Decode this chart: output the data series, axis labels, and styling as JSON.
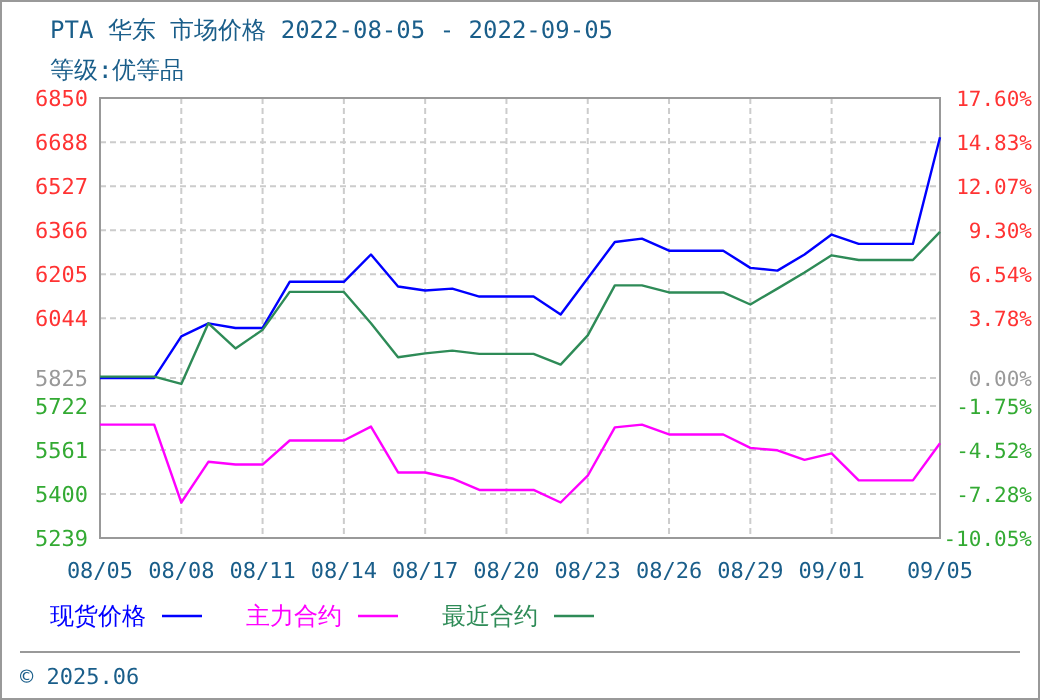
{
  "chart_data": {
    "type": "line",
    "title": "PTA 华东 市场价格 2022-08-05 - 2022-09-05",
    "subtitle": "等级:优等品",
    "annotations": [
      "© 2025.06"
    ],
    "xlim": [
      "2022-08-05",
      "2022-09-05"
    ],
    "xticks": [
      {
        "value": "2022-08-05",
        "label": "08/05"
      },
      {
        "value": "2022-08-08",
        "label": "08/08"
      },
      {
        "value": "2022-08-11",
        "label": "08/11"
      },
      {
        "value": "2022-08-14",
        "label": "08/14"
      },
      {
        "value": "2022-08-17",
        "label": "08/17"
      },
      {
        "value": "2022-08-20",
        "label": "08/20"
      },
      {
        "value": "2022-08-23",
        "label": "08/23"
      },
      {
        "value": "2022-08-26",
        "label": "08/26"
      },
      {
        "value": "2022-08-29",
        "label": "08/29"
      },
      {
        "value": "2022-09-01",
        "label": "09/01"
      },
      {
        "value": "2022-09-05",
        "label": "09/05"
      }
    ],
    "ylim": [
      5239,
      6850
    ],
    "yticks": [
      6850,
      6688,
      6527,
      6366,
      6205,
      6044,
      5825,
      5722,
      5561,
      5400,
      5239
    ],
    "y2lim": [
      -10.05,
      17.6
    ],
    "y2ticks": [
      {
        "value": 17.6,
        "label": "17.60%"
      },
      {
        "value": 14.83,
        "label": "14.83%"
      },
      {
        "value": 12.07,
        "label": "12.07%"
      },
      {
        "value": 9.3,
        "label": "9.30%"
      },
      {
        "value": 6.54,
        "label": "6.54%"
      },
      {
        "value": 3.78,
        "label": "3.78%"
      },
      {
        "value": 0,
        "label": "0.00%"
      },
      {
        "value": -1.75,
        "label": "-1.75%"
      },
      {
        "value": -4.52,
        "label": "-4.52%"
      },
      {
        "value": -7.28,
        "label": "-7.28%"
      },
      {
        "value": -10.05,
        "label": "-10.05%"
      }
    ],
    "grid": true,
    "legend": "bottom",
    "line_style": "solid",
    "marker": "none",
    "series": [
      {
        "name": "现货价格",
        "color": "#0000ff",
        "x": [
          "2022-08-05",
          "2022-08-07",
          "2022-08-08",
          "2022-08-09",
          "2022-08-10",
          "2022-08-11",
          "2022-08-12",
          "2022-08-14",
          "2022-08-15",
          "2022-08-16",
          "2022-08-17",
          "2022-08-18",
          "2022-08-19",
          "2022-08-21",
          "2022-08-22",
          "2022-08-24",
          "2022-08-25",
          "2022-08-26",
          "2022-08-28",
          "2022-08-29",
          "2022-08-30",
          "2022-08-31",
          "2022-09-01",
          "2022-09-02",
          "2022-09-04",
          "2022-09-05"
        ],
        "values": [
          5825,
          5825,
          5977,
          6025,
          6008,
          6008,
          6177,
          6177,
          6277,
          6160,
          6145,
          6152,
          6123,
          6123,
          6057,
          6323,
          6335,
          6291,
          6291,
          6228,
          6218,
          6277,
          6350,
          6316,
          6316,
          6706
        ]
      },
      {
        "name": "主力合约",
        "color": "#ff00ff",
        "x": [
          "2022-08-05",
          "2022-08-07",
          "2022-08-08",
          "2022-08-09",
          "2022-08-10",
          "2022-08-11",
          "2022-08-12",
          "2022-08-14",
          "2022-08-15",
          "2022-08-16",
          "2022-08-17",
          "2022-08-18",
          "2022-08-19",
          "2022-08-21",
          "2022-08-22",
          "2022-08-23",
          "2022-08-24",
          "2022-08-25",
          "2022-08-26",
          "2022-08-28",
          "2022-08-29",
          "2022-08-30",
          "2022-08-31",
          "2022-09-01",
          "2022-09-02",
          "2022-09-04",
          "2022-09-05"
        ],
        "values": [
          5654,
          5654,
          5369,
          5518,
          5508,
          5508,
          5596,
          5596,
          5647,
          5479,
          5479,
          5457,
          5415,
          5415,
          5369,
          5467,
          5644,
          5654,
          5618,
          5618,
          5569,
          5560,
          5525,
          5549,
          5450,
          5450,
          5586
        ]
      },
      {
        "name": "最近合约",
        "color": "#2e8b57",
        "x": [
          "2022-08-05",
          "2022-08-07",
          "2022-08-08",
          "2022-08-09",
          "2022-08-10",
          "2022-08-11",
          "2022-08-12",
          "2022-08-14",
          "2022-08-15",
          "2022-08-16",
          "2022-08-17",
          "2022-08-18",
          "2022-08-19",
          "2022-08-21",
          "2022-08-22",
          "2022-08-23",
          "2022-08-24",
          "2022-08-25",
          "2022-08-26",
          "2022-08-28",
          "2022-08-29",
          "2022-08-30",
          "2022-08-31",
          "2022-09-01",
          "2022-09-02",
          "2022-09-04",
          "2022-09-05"
        ],
        "values": [
          5830,
          5830,
          5803,
          6025,
          5933,
          6001,
          6140,
          6140,
          6025,
          5901,
          5915,
          5925,
          5913,
          5913,
          5874,
          5981,
          6164,
          6164,
          6138,
          6138,
          6094,
          6152,
          6211,
          6274,
          6257,
          6257,
          6360
        ]
      }
    ]
  }
}
